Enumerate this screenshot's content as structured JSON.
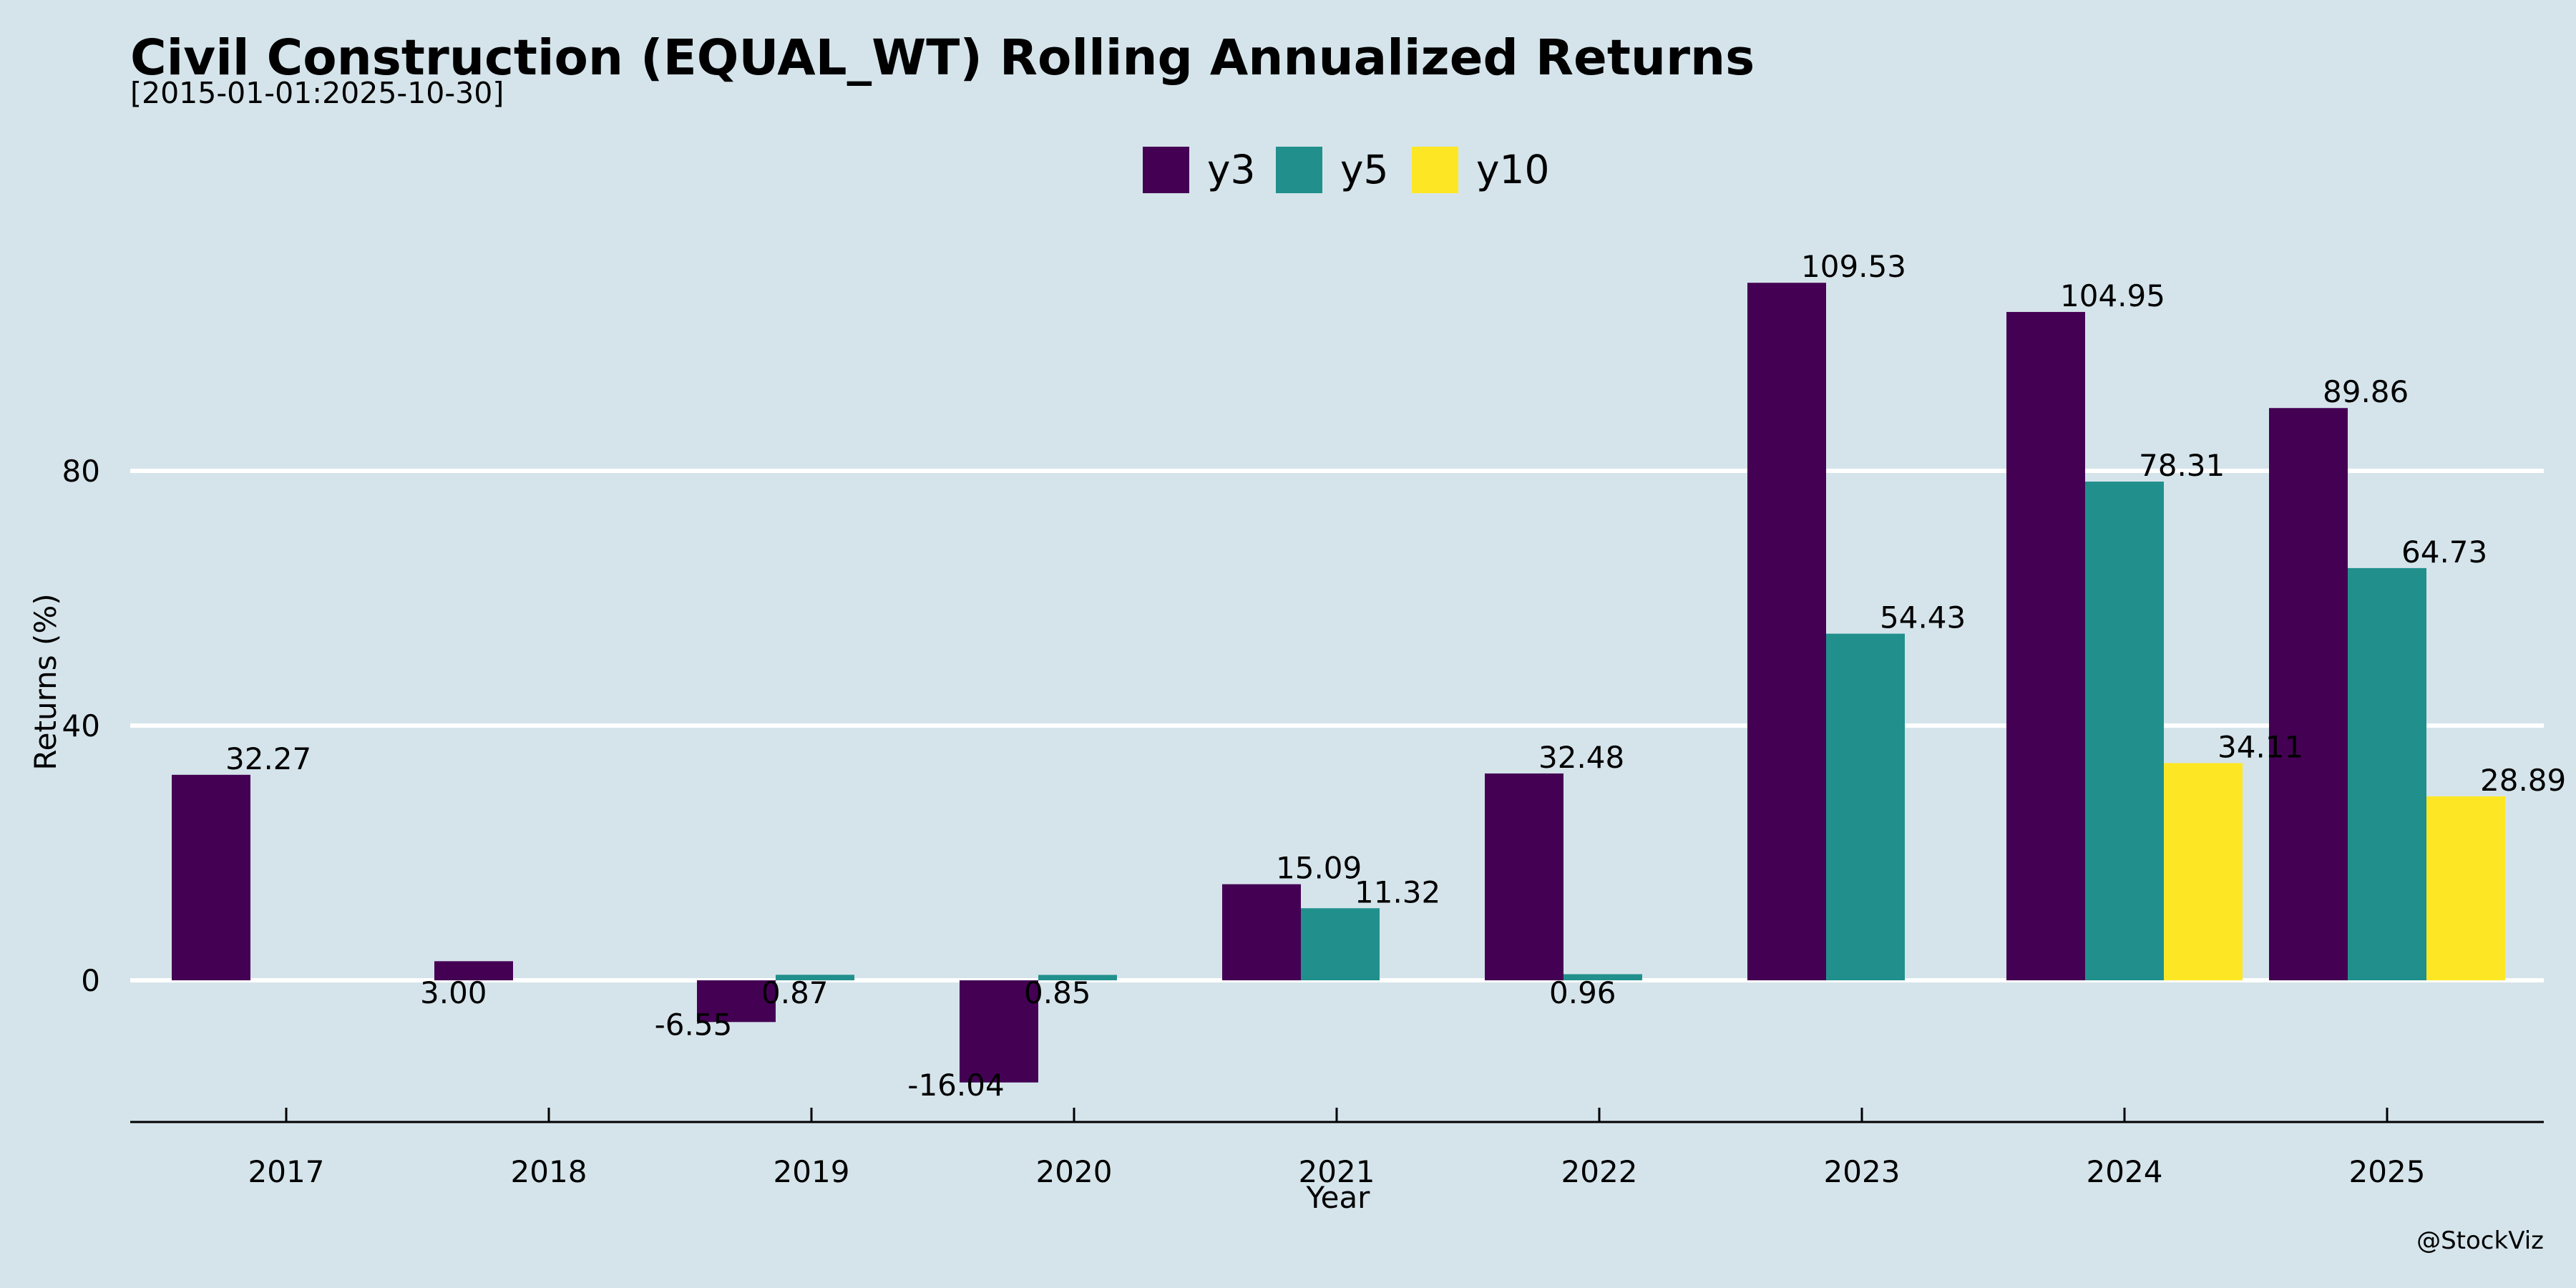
{
  "chart_data": {
    "type": "bar",
    "title": "Civil Construction (EQUAL_WT) Rolling Annualized Returns",
    "subtitle": "[2015-01-01:2025-10-30]",
    "xlabel": "Year",
    "ylabel": "Returns (%)",
    "categories": [
      "2017",
      "2018",
      "2019",
      "2020",
      "2021",
      "2022",
      "2023",
      "2024",
      "2025"
    ],
    "series": [
      {
        "name": "y3",
        "color": "#440154",
        "values": [
          32.27,
          3.0,
          -6.55,
          -16.04,
          15.09,
          32.48,
          109.53,
          104.95,
          89.86
        ],
        "labels": [
          "32.27",
          "3.00",
          "-6.55",
          "-16.04",
          "15.09",
          "32.48",
          "109.53",
          "104.95",
          "89.86"
        ]
      },
      {
        "name": "y5",
        "color": "#21908c",
        "values": [
          null,
          null,
          0.87,
          0.85,
          11.32,
          0.96,
          54.43,
          78.31,
          64.73
        ],
        "labels": [
          null,
          null,
          "0.87",
          "0.85",
          "11.32",
          "0.96",
          "54.43",
          "78.31",
          "64.73"
        ]
      },
      {
        "name": "y10",
        "color": "#fde725",
        "values": [
          null,
          null,
          null,
          null,
          null,
          null,
          null,
          34.11,
          28.89
        ],
        "labels": [
          null,
          null,
          null,
          null,
          null,
          null,
          null,
          "34.11",
          "28.89"
        ]
      }
    ],
    "yticks": [
      0,
      40,
      80
    ],
    "ylim": [
      -22,
      125
    ],
    "grid": "horizontal",
    "legend": "top-center"
  },
  "credit": "@StockViz",
  "colors": {
    "background": "#d5e4eb",
    "grid": "#ffffff",
    "axis": "#000000"
  }
}
